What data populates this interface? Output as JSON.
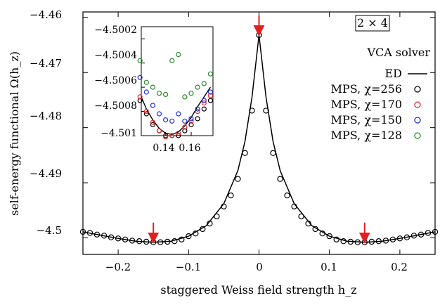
{
  "chart_data": {
    "type": "scatter",
    "xlabel": "staggered Weiss field strength h_z",
    "ylabel": "self-energy functional Ω(h_z)",
    "xlim": [
      -0.25,
      0.25
    ],
    "ylim": [
      -4.503,
      -4.459
    ],
    "xticks": [
      "−0.2",
      "−0.1",
      "0",
      "0.1",
      "0.2"
    ],
    "yticks": [
      "−4.46",
      "−4.47",
      "−4.48",
      "−4.49",
      "−4.5"
    ],
    "annotations": {
      "lattice": "2 × 4",
      "solver": "VCA solver"
    },
    "arrows_x": [
      -0.15,
      0.0,
      0.15
    ],
    "colors": {
      "ed_line": "#000000",
      "chi256": "#000000",
      "chi170": "#e8282c",
      "chi150": "#1f2fe0",
      "chi128": "#2a8a2a",
      "arrow": "#e02020"
    },
    "series": [
      {
        "name": "ED",
        "kind": "line",
        "x": [
          -0.25,
          -0.225,
          -0.2,
          -0.175,
          -0.15,
          -0.125,
          -0.1,
          -0.075,
          -0.05,
          -0.03,
          -0.02,
          -0.01,
          0.0,
          0.01,
          0.02,
          0.03,
          0.05,
          0.075,
          0.1,
          0.125,
          0.15,
          0.175,
          0.2,
          0.225,
          0.25
        ],
        "y": [
          -4.4989,
          -4.4995,
          -4.5001,
          -4.5006,
          -4.5008,
          -4.5006,
          -4.4997,
          -4.4978,
          -4.4938,
          -4.4878,
          -4.4825,
          -4.4745,
          -4.4632,
          -4.4745,
          -4.4825,
          -4.4878,
          -4.4938,
          -4.4978,
          -4.4997,
          -4.5006,
          -4.5008,
          -4.5006,
          -4.5001,
          -4.4995,
          -4.4989
        ]
      },
      {
        "name": "MPS, χ=256",
        "kind": "markers",
        "x": [
          -0.25,
          -0.24,
          -0.23,
          -0.22,
          -0.21,
          -0.2,
          -0.19,
          -0.18,
          -0.17,
          -0.16,
          -0.15,
          -0.14,
          -0.13,
          -0.12,
          -0.11,
          -0.1,
          -0.09,
          -0.08,
          -0.07,
          -0.06,
          -0.05,
          -0.04,
          -0.03,
          -0.02,
          -0.01,
          0.0,
          0.01,
          0.02,
          0.03,
          0.04,
          0.05,
          0.06,
          0.07,
          0.08,
          0.09,
          0.1,
          0.11,
          0.12,
          0.13,
          0.14,
          0.15,
          0.16,
          0.17,
          0.18,
          0.19,
          0.2,
          0.21,
          0.22,
          0.23,
          0.24,
          0.25
        ],
        "y": [
          -4.4989,
          -4.4991,
          -4.4994,
          -4.4996,
          -4.4999,
          -4.5001,
          -4.5003,
          -4.5005,
          -4.5006,
          -4.5007,
          -4.5008,
          -4.5008,
          -4.5007,
          -4.5006,
          -4.5003,
          -4.4997,
          -4.4992,
          -4.4984,
          -4.4974,
          -4.4961,
          -4.4943,
          -4.4923,
          -4.4893,
          -4.4846,
          -4.4769,
          -4.4632,
          -4.4769,
          -4.4846,
          -4.4893,
          -4.4923,
          -4.4943,
          -4.4961,
          -4.4974,
          -4.4984,
          -4.4992,
          -4.4997,
          -4.5003,
          -4.5006,
          -4.5007,
          -4.5008,
          -4.5008,
          -4.5007,
          -4.5006,
          -4.5005,
          -4.5003,
          -4.5001,
          -4.4999,
          -4.4996,
          -4.4994,
          -4.4991,
          -4.4989
        ]
      }
    ],
    "inset": {
      "xlim": [
        0.121,
        0.177
      ],
      "ylim": [
        -4.501,
        -4.5001
      ],
      "xticks": [
        "0.14",
        "0.16"
      ],
      "yticks": [
        "−4.5002",
        "−4.5004",
        "−4.5006",
        "−4.5008",
        "−4.501"
      ],
      "ed_curve": {
        "x": [
          0.121,
          0.125,
          0.13,
          0.135,
          0.14,
          0.145,
          0.15,
          0.155,
          0.16,
          0.165,
          0.17,
          0.175
        ],
        "y": [
          -4.50068,
          -4.50078,
          -4.50087,
          -4.50094,
          -4.50098,
          -4.50099,
          -4.50097,
          -4.50092,
          -4.50085,
          -4.50076,
          -4.50068,
          -4.5006
        ]
      },
      "series": [
        {
          "name": "MPS, χ=256",
          "x": [
            0.12,
            0.125,
            0.13,
            0.135,
            0.14,
            0.145,
            0.15,
            0.155,
            0.16,
            0.165,
            0.17,
            0.175
          ],
          "y": [
            -4.50071,
            -4.50082,
            -4.50091,
            -4.50096,
            -4.501,
            -4.501,
            -4.501,
            -4.50096,
            -4.50091,
            -4.50086,
            -4.50078,
            -4.50071
          ]
        },
        {
          "name": "MPS, χ=170",
          "x": [
            0.12,
            0.125,
            0.13,
            0.135,
            0.14,
            0.145,
            0.15,
            0.155,
            0.16,
            0.165,
            0.17,
            0.175
          ],
          "y": [
            -4.50068,
            -4.5008,
            -4.50089,
            -4.50096,
            -4.50101,
            -4.501,
            -4.50098,
            -4.50093,
            -4.50088,
            -4.5008,
            -4.50073,
            -4.50067
          ]
        },
        {
          "name": "MPS, χ=150",
          "x": [
            0.12,
            0.125,
            0.13,
            0.135,
            0.14,
            0.145,
            0.15,
            0.155,
            0.16,
            0.165,
            0.17,
            0.175
          ],
          "y": [
            -4.50052,
            -4.50064,
            -4.50075,
            -4.50082,
            -4.50087,
            -4.50088,
            -4.50082,
            -4.50088,
            -4.50086,
            -4.50078,
            -4.50071,
            -4.50064
          ]
        },
        {
          "name": "MPS, χ=128",
          "x": [
            0.12,
            0.125,
            0.13,
            0.135,
            0.14,
            0.145,
            0.15,
            0.155,
            0.16,
            0.165,
            0.17,
            0.175
          ],
          "y": [
            -4.50038,
            -4.50056,
            -4.5006,
            -4.50065,
            -4.50066,
            -4.50038,
            -4.50033,
            -4.50068,
            -4.50065,
            -4.5006,
            -4.50057,
            -4.50049
          ]
        }
      ]
    },
    "legend": [
      "ED",
      "MPS, χ=256",
      "MPS, χ=170",
      "MPS, χ=150",
      "MPS, χ=128"
    ]
  }
}
